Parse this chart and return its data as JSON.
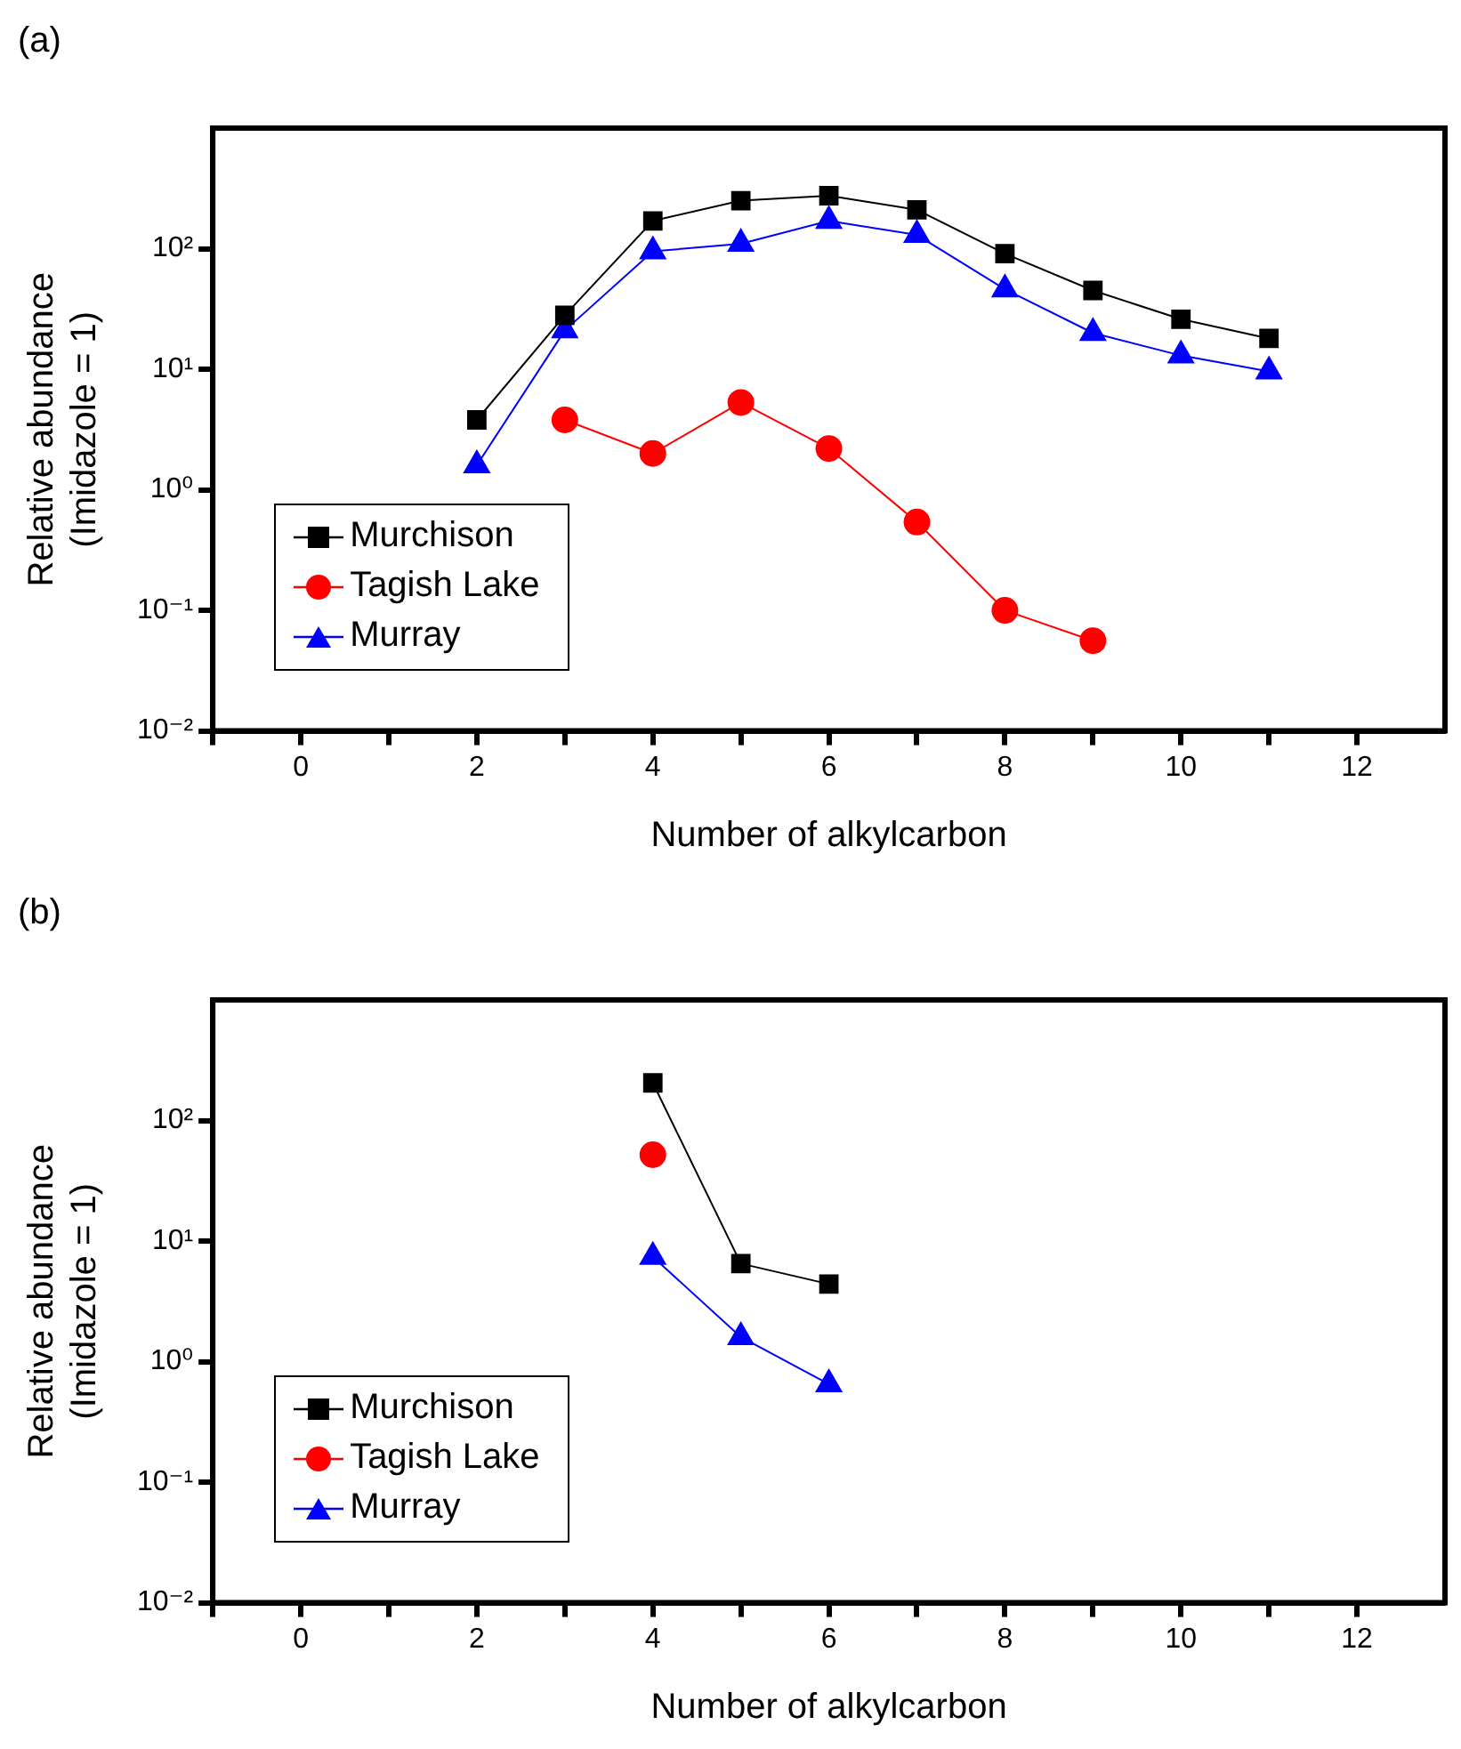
{
  "chart_data": [
    {
      "type": "line",
      "title": "(a)",
      "xlabel": "Number of alkylcarbon",
      "ylabel": "Relative abundance\n(Imidazole = 1)",
      "log": "y",
      "xlim": [
        -1,
        13
      ],
      "ylim": [
        0.01,
        1000
      ],
      "xticks": [
        {
          "value": -1,
          "label": null
        },
        0,
        {
          "value": 1,
          "label": null
        },
        2,
        {
          "value": 3,
          "label": null
        },
        4,
        {
          "value": 5,
          "label": null
        },
        6,
        {
          "value": 7,
          "label": null
        },
        8,
        {
          "value": 9,
          "label": null
        },
        10,
        {
          "value": 11,
          "label": null
        },
        12
      ],
      "yticks": [
        {
          "value": 0.01,
          "label": "10⁻²"
        },
        {
          "value": 0.1,
          "label": "10⁻¹"
        },
        {
          "value": 1,
          "label": "10⁰"
        },
        {
          "value": 10,
          "label": "10¹"
        },
        {
          "value": 100,
          "label": "10²"
        }
      ],
      "legend": "bottom left",
      "series": [
        {
          "name": "Murchison",
          "color": "#000000",
          "marker": "square",
          "x": [
            2,
            3,
            4,
            5,
            6,
            7,
            8,
            9,
            10,
            11
          ],
          "values": [
            3.8,
            28,
            170,
            250,
            275,
            210,
            91,
            45,
            26,
            18
          ]
        },
        {
          "name": "Tagish Lake",
          "color": "#ff0000",
          "marker": "circle",
          "x": [
            3,
            4,
            5,
            6,
            7,
            8,
            9
          ],
          "values": [
            3.8,
            2.0,
            5.3,
            2.2,
            0.54,
            0.1,
            0.056
          ]
        },
        {
          "name": "Murray",
          "color": "#0000ff",
          "marker": "triangle",
          "x": [
            2,
            3,
            4,
            5,
            6,
            7,
            8,
            9,
            10,
            11
          ],
          "values": [
            1.6,
            21,
            95,
            110,
            170,
            130,
            46,
            20,
            13,
            9.6
          ]
        }
      ]
    },
    {
      "type": "line",
      "title": "(b)",
      "xlabel": "Number of alkylcarbon",
      "ylabel": "Relative abundance\n(Imidazole = 1)",
      "log": "y",
      "xlim": [
        -1,
        13
      ],
      "ylim": [
        0.01,
        1000
      ],
      "xticks": [
        {
          "value": -1,
          "label": null
        },
        0,
        {
          "value": 1,
          "label": null
        },
        2,
        {
          "value": 3,
          "label": null
        },
        4,
        {
          "value": 5,
          "label": null
        },
        6,
        {
          "value": 7,
          "label": null
        },
        8,
        {
          "value": 9,
          "label": null
        },
        10,
        {
          "value": 11,
          "label": null
        },
        12
      ],
      "yticks": [
        {
          "value": 0.01,
          "label": "10⁻²"
        },
        {
          "value": 0.1,
          "label": "10⁻¹"
        },
        {
          "value": 1,
          "label": "10⁰"
        },
        {
          "value": 10,
          "label": "10¹"
        },
        {
          "value": 100,
          "label": "10²"
        }
      ],
      "legend": "bottom left",
      "series": [
        {
          "name": "Murchison",
          "color": "#000000",
          "marker": "square",
          "x": [
            4,
            5,
            6
          ],
          "values": [
            205,
            6.5,
            4.4
          ]
        },
        {
          "name": "Tagish Lake",
          "color": "#ff0000",
          "marker": "circle",
          "x": [
            4
          ],
          "values": [
            52
          ]
        },
        {
          "name": "Murray",
          "color": "#0000ff",
          "marker": "triangle",
          "x": [
            4,
            5,
            6
          ],
          "values": [
            7.4,
            1.6,
            0.65
          ]
        }
      ]
    }
  ]
}
